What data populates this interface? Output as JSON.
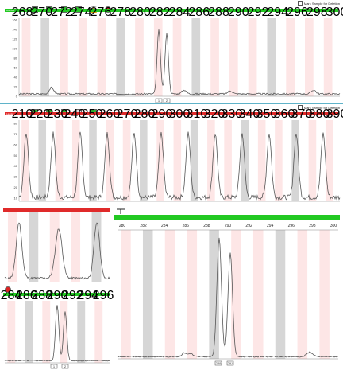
{
  "panel1": {
    "label": "AGPAN",
    "bar_color": "#22c922",
    "checkbox_label": "Mark Sample for Deletion",
    "y_ticks": [
      "160",
      "140",
      "120",
      "100",
      "80",
      "60",
      "40",
      "20",
      "0"
    ],
    "x_ticks": [
      "268",
      "270",
      "272",
      "274",
      "276",
      "278",
      "280",
      "282",
      "284",
      "286",
      "288",
      "290",
      "292",
      "294",
      "296",
      "298",
      "300"
    ],
    "markers": [
      "1",
      "2"
    ]
  },
  "panel2": {
    "label": "Ladder",
    "bar_color": "#e02a2a",
    "checkbox_label": "Mark Sample for Deletion",
    "y_ticks": [
      "80",
      "70",
      "60",
      "50",
      "40",
      "30",
      "20",
      "10"
    ],
    "x_ticks": [
      "210",
      "220",
      "230",
      "240",
      "250",
      "260",
      "270",
      "280",
      "290",
      "300",
      "310",
      "320",
      "330",
      "340",
      "350",
      "360",
      "370",
      "380",
      "390"
    ]
  },
  "zoom_left_top": {
    "bar_color": "#e02a2a"
  },
  "zoom_left_bottom": {
    "bar_color": "#22c922",
    "x_ticks": [
      "284",
      "286",
      "288",
      "290",
      "292",
      "294",
      "296"
    ],
    "markers": [
      "1",
      "2"
    ]
  },
  "zoom_main": {
    "bar_color": "#22c922",
    "x_ticks": [
      "280",
      "282",
      "284",
      "286",
      "288",
      "290",
      "292",
      "294",
      "296",
      "298",
      "300"
    ],
    "markers": [
      "289",
      "291"
    ]
  },
  "colors": {
    "stripe_pink": "#fde6e6",
    "stripe_gray": "#d6d6d6",
    "trace": "#555555",
    "frame": "#5fb3c9"
  }
}
